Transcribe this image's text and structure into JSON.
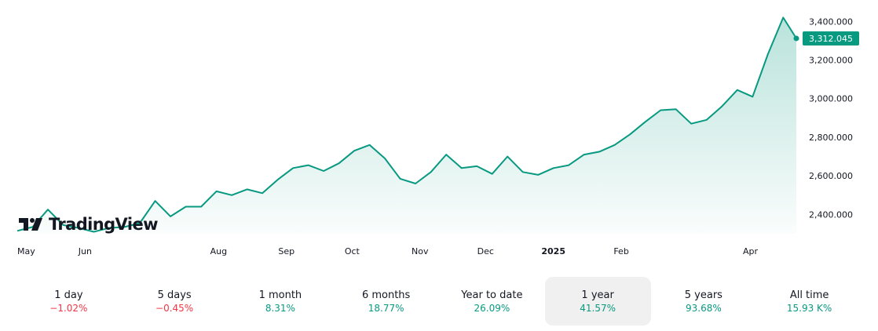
{
  "chart_data": {
    "type": "area",
    "x": [
      "2024-05-01",
      "2024-05-08",
      "2024-05-15",
      "2024-05-22",
      "2024-05-29",
      "2024-06-05",
      "2024-06-12",
      "2024-06-19",
      "2024-06-26",
      "2024-07-03",
      "2024-07-10",
      "2024-07-17",
      "2024-07-24",
      "2024-07-31",
      "2024-08-07",
      "2024-08-14",
      "2024-08-21",
      "2024-08-28",
      "2024-09-04",
      "2024-09-11",
      "2024-09-18",
      "2024-09-25",
      "2024-10-02",
      "2024-10-09",
      "2024-10-16",
      "2024-10-23",
      "2024-10-30",
      "2024-11-06",
      "2024-11-13",
      "2024-11-20",
      "2024-11-27",
      "2024-12-04",
      "2024-12-11",
      "2024-12-18",
      "2024-12-25",
      "2025-01-01",
      "2025-01-08",
      "2025-01-15",
      "2025-01-22",
      "2025-01-29",
      "2025-02-05",
      "2025-02-12",
      "2025-02-19",
      "2025-02-26",
      "2025-03-05",
      "2025-03-12",
      "2025-03-19",
      "2025-03-26",
      "2025-04-02",
      "2025-04-09",
      "2025-04-16",
      "2025-04-22"
    ],
    "values": [
      2315,
      2335,
      2425,
      2345,
      2330,
      2310,
      2330,
      2335,
      2355,
      2470,
      2390,
      2440,
      2440,
      2520,
      2500,
      2530,
      2510,
      2580,
      2640,
      2655,
      2625,
      2665,
      2730,
      2760,
      2690,
      2585,
      2560,
      2620,
      2710,
      2640,
      2650,
      2610,
      2700,
      2620,
      2605,
      2640,
      2655,
      2710,
      2725,
      2760,
      2815,
      2880,
      2940,
      2945,
      2870,
      2890,
      2960,
      3045,
      3010,
      3230,
      3420,
      3312.045
    ],
    "xlim": [
      "2024-05-01",
      "2025-04-22"
    ],
    "ylim": [
      2300,
      3450
    ],
    "y_ticks": [
      "3,400.000",
      "3,200.000",
      "3,000.000",
      "2,800.000",
      "2,600.000",
      "2,400.000"
    ],
    "y_tick_values": [
      3400,
      3200,
      3000,
      2800,
      2600,
      2400
    ],
    "x_ticks": [
      {
        "label": "May",
        "date": "2024-05-01",
        "bold": false
      },
      {
        "label": "Jun",
        "date": "2024-06-01",
        "bold": false
      },
      {
        "label": "Aug",
        "date": "2024-08-01",
        "bold": false
      },
      {
        "label": "Sep",
        "date": "2024-09-01",
        "bold": false
      },
      {
        "label": "Oct",
        "date": "2024-10-01",
        "bold": false
      },
      {
        "label": "Nov",
        "date": "2024-11-01",
        "bold": false
      },
      {
        "label": "Dec",
        "date": "2024-12-01",
        "bold": false
      },
      {
        "label": "2025",
        "date": "2025-01-01",
        "bold": true
      },
      {
        "label": "Feb",
        "date": "2025-02-01",
        "bold": false
      },
      {
        "label": "Apr",
        "date": "2025-04-01",
        "bold": false
      }
    ],
    "last_price_label": "3,312.045",
    "grid": false,
    "line_color": "#089981",
    "fill_color": "#089981"
  },
  "logo": {
    "text": "TradingView"
  },
  "ranges": [
    {
      "label": "1 day",
      "value": "−1.02%",
      "trend": "neg",
      "active": false
    },
    {
      "label": "5 days",
      "value": "−0.45%",
      "trend": "neg",
      "active": false
    },
    {
      "label": "1 month",
      "value": "8.31%",
      "trend": "pos",
      "active": false
    },
    {
      "label": "6 months",
      "value": "18.77%",
      "trend": "pos",
      "active": false
    },
    {
      "label": "Year to date",
      "value": "26.09%",
      "trend": "pos",
      "active": false
    },
    {
      "label": "1 year",
      "value": "41.57%",
      "trend": "pos",
      "active": true
    },
    {
      "label": "5 years",
      "value": "93.68%",
      "trend": "pos",
      "active": false
    },
    {
      "label": "All time",
      "value": "15.93 K%",
      "trend": "pos",
      "active": false
    }
  ],
  "colors": {
    "positive": "#089981",
    "negative": "#f23645",
    "active_bg": "#f0f0f0"
  }
}
